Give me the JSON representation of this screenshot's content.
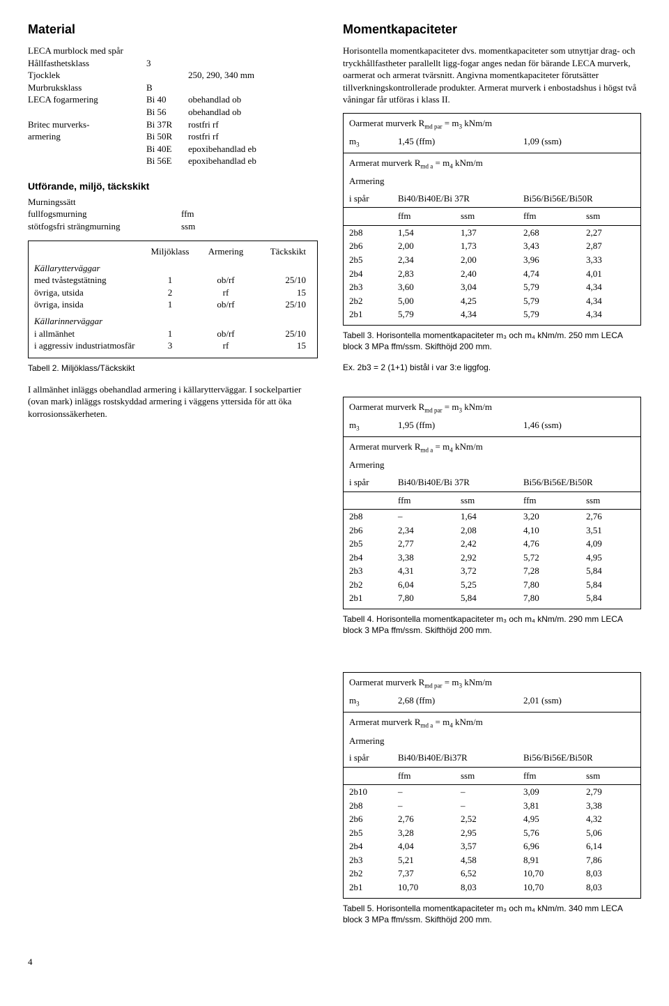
{
  "left": {
    "h_material": "Material",
    "specs": [
      {
        "label": "LECA murblock med spår",
        "v1": "",
        "v2": ""
      },
      {
        "label": "Hållfasthetsklass",
        "v1": "3",
        "v2": ""
      },
      {
        "label": "Tjocklek",
        "v1": "",
        "v2": "250, 290, 340 mm"
      },
      {
        "label": "Murbruksklass",
        "v1": "B",
        "v2": ""
      },
      {
        "label": "LECA fogarmering",
        "v1": "Bi 40",
        "v2": "obehandlad ob"
      },
      {
        "label": "",
        "v1": "Bi 56",
        "v2": "obehandlad ob"
      },
      {
        "label": "Britec murverks-",
        "v1": "Bi 37R",
        "v2": "rostfri rf"
      },
      {
        "label": "armering",
        "v1": "Bi 50R",
        "v2": "rostfri rf"
      },
      {
        "label": "",
        "v1": "Bi 40E",
        "v2": "epoxibehandlad eb"
      },
      {
        "label": "",
        "v1": "Bi 56E",
        "v2": "epoxibehandlad eb"
      }
    ],
    "h_utforande": "Utförande, miljö, täckskikt",
    "utfr": [
      {
        "label": "Murningssätt",
        "v": ""
      },
      {
        "label": "fullfogsmurning",
        "v": "ffm"
      },
      {
        "label": "stötfogsfri strängmurning",
        "v": "ssm"
      }
    ],
    "table2": {
      "headers": [
        "",
        "Miljöklass",
        "Armering",
        "Täckskikt"
      ],
      "groups": [
        {
          "title": "Källarytterväggar",
          "rows": [
            {
              "c0": "med tvåstegstätning",
              "c1": "1",
              "c2": "ob/rf",
              "c3": "25/10"
            },
            {
              "c0": "övriga, utsida",
              "c1": "2",
              "c2": "rf",
              "c3": "15"
            },
            {
              "c0": "övriga, insida",
              "c1": "1",
              "c2": "ob/rf",
              "c3": "25/10"
            }
          ]
        },
        {
          "title": "Källarinnerväggar",
          "rows": [
            {
              "c0": "i allmänhet",
              "c1": "1",
              "c2": "ob/rf",
              "c3": "25/10"
            },
            {
              "c0": "i aggressiv industriatmosfär",
              "c1": "3",
              "c2": "rf",
              "c3": "15"
            }
          ]
        }
      ],
      "caption": "Tabell 2. Miljöklass/Täckskikt"
    },
    "para": "I allmänhet inläggs obehandlad armering i källarytterväggar. I sockelpartier (ovan mark) inläggs rostskyddad armering i väggens yttersida för att öka korrosionssäkerheten."
  },
  "right": {
    "h_moment": "Momentkapaciteter",
    "intro": "Horisontella momentkapaciteter dvs. momentkapaciteter som utnyttjar drag- och tryckhållfastheter parallellt ligg-fogar anges nedan för bärande LECA murverk, oarmerat och armerat tvärsnitt. Angivna momentkapaciteter förutsätter tillverkningskontrollerade produkter. Armerat murverk i enbostadshus i högst två våningar får utföras i klass II.",
    "tables": [
      {
        "oarm_title": "Oarmerat murverk R",
        "oarm_sub": "md par",
        "oarm_eq": " = m",
        "oarm_sub2": "3",
        "oarm_unit": " kNm/m",
        "m3": "m",
        "m3sub": "3",
        "m3_ffm": "1,45 (ffm)",
        "m3_ssm": "1,09 (ssm)",
        "arm_title": "Armerat murverk R",
        "arm_sub": "md a",
        "arm_eq": " = m",
        "arm_sub2": "4",
        "arm_unit": " kNm/m",
        "armering": "Armering",
        "ispår": "i spår",
        "col1": "Bi40/Bi40E/Bi 37R",
        "col2": "Bi56/Bi56E/Bi50R",
        "sub": [
          "ffm",
          "ssm",
          "ffm",
          "ssm"
        ],
        "rows": [
          [
            "2b8",
            "1,54",
            "1,37",
            "2,68",
            "2,27"
          ],
          [
            "2b6",
            "2,00",
            "1,73",
            "3,43",
            "2,87"
          ],
          [
            "2b5",
            "2,34",
            "2,00",
            "3,96",
            "3,33"
          ],
          [
            "2b4",
            "2,83",
            "2,40",
            "4,74",
            "4,01"
          ],
          [
            "2b3",
            "3,60",
            "3,04",
            "5,79",
            "4,34"
          ],
          [
            "2b2",
            "5,00",
            "4,25",
            "5,79",
            "4,34"
          ],
          [
            "2b1",
            "5,79",
            "4,34",
            "5,79",
            "4,34"
          ]
        ],
        "caption": "Tabell 3. Horisontella momentkapaciteter m₃ och m₄ kNm/m. 250 mm LECA block 3 MPa ffm/ssm. Skifthöjd 200 mm.",
        "ex": "Ex. 2b3 = 2 (1+1) bistål i var 3:e liggfog."
      },
      {
        "oarm_title": "Oarmerat murverk R",
        "oarm_sub": "md par",
        "oarm_eq": " = m",
        "oarm_sub2": "3",
        "oarm_unit": " kNm/m",
        "m3": "m",
        "m3sub": "3",
        "m3_ffm": "1,95 (ffm)",
        "m3_ssm": "1,46 (ssm)",
        "arm_title": "Armerat murverk R",
        "arm_sub": "md a",
        "arm_eq": " = m",
        "arm_sub2": "4",
        "arm_unit": " kNm/m",
        "armering": "Armering",
        "ispår": "i spår",
        "col1": "Bi40/Bi40E/Bi 37R",
        "col2": "Bi56/Bi56E/Bi50R",
        "sub": [
          "ffm",
          "ssm",
          "ffm",
          "ssm"
        ],
        "rows": [
          [
            "2b8",
            "–",
            "1,64",
            "3,20",
            "2,76"
          ],
          [
            "2b6",
            "2,34",
            "2,08",
            "4,10",
            "3,51"
          ],
          [
            "2b5",
            "2,77",
            "2,42",
            "4,76",
            "4,09"
          ],
          [
            "2b4",
            "3,38",
            "2,92",
            "5,72",
            "4,95"
          ],
          [
            "2b3",
            "4,31",
            "3,72",
            "7,28",
            "5,84"
          ],
          [
            "2b2",
            "6,04",
            "5,25",
            "7,80",
            "5,84"
          ],
          [
            "2b1",
            "7,80",
            "5,84",
            "7,80",
            "5,84"
          ]
        ],
        "caption": "Tabell 4. Horisontella momentkapaciteter m₃ och m₄ kNm/m. 290 mm LECA block 3 MPa ffm/ssm. Skifthöjd 200 mm.",
        "ex": ""
      },
      {
        "oarm_title": "Oarmerat murverk R",
        "oarm_sub": "md par",
        "oarm_eq": " = m",
        "oarm_sub2": "3",
        "oarm_unit": " kNm/m",
        "m3": "m",
        "m3sub": "3",
        "m3_ffm": "2,68 (ffm)",
        "m3_ssm": "2,01 (ssm)",
        "arm_title": "Armerat murverk R",
        "arm_sub": "md a",
        "arm_eq": " = m",
        "arm_sub2": "4",
        "arm_unit": " kNm/m",
        "armering": "Armering",
        "ispår": "i spår",
        "col1": "Bi40/Bi40E/Bi37R",
        "col2": "Bi56/Bi56E/Bi50R",
        "sub": [
          "ffm",
          "ssm",
          "ffm",
          "ssm"
        ],
        "rows": [
          [
            "2b10",
            "–",
            "–",
            "3,09",
            "2,79"
          ],
          [
            "2b8",
            "–",
            "–",
            "3,81",
            "3,38"
          ],
          [
            "2b6",
            "2,76",
            "2,52",
            "4,95",
            "4,32"
          ],
          [
            "2b5",
            "3,28",
            "2,95",
            "5,76",
            "5,06"
          ],
          [
            "2b4",
            "4,04",
            "3,57",
            "6,96",
            "6,14"
          ],
          [
            "2b3",
            "5,21",
            "4,58",
            "8,91",
            "7,86"
          ],
          [
            "2b2",
            "7,37",
            "6,52",
            "10,70",
            "8,03"
          ],
          [
            "2b1",
            "10,70",
            "8,03",
            "10,70",
            "8,03"
          ]
        ],
        "caption": "Tabell 5. Horisontella momentkapaciteter m₃ och m₄ kNm/m. 340 mm LECA block 3 MPa ffm/ssm. Skifthöjd 200 mm.",
        "ex": ""
      }
    ]
  },
  "pagenum": "4"
}
